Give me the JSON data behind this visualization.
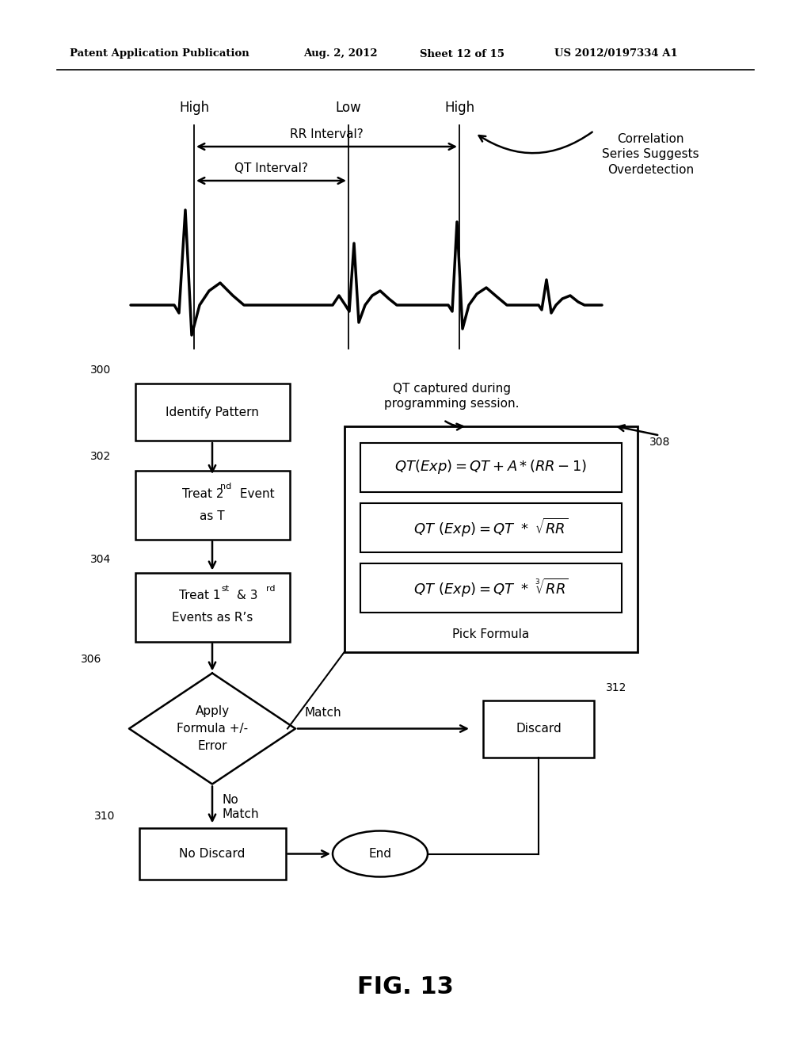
{
  "bg_color": "#ffffff",
  "header_text": "Patent Application Publication",
  "header_date": "Aug. 2, 2012",
  "header_sheet": "Sheet 12 of 15",
  "header_patent": "US 2012/0197334 A1",
  "fig_label": "FIG. 13",
  "ecg_label_high1": "High",
  "ecg_label_low": "Low",
  "ecg_label_high2": "High",
  "rr_label": "RR Interval?",
  "qt_label": "QT Interval?",
  "corr_label": "Correlation\nSeries Suggests\nOverdetection",
  "box300_label": "Identify Pattern",
  "diamond306_label": "Apply\nFormula +/-\nError",
  "box310_label": "No Discard",
  "box312_label": "Discard",
  "end_label": "End",
  "qt_formula_label": "QT captured during\nprogramming session.",
  "pick_formula_label": "Pick Formula",
  "ref300": "300",
  "ref302": "302",
  "ref304": "304",
  "ref306": "306",
  "ref308": "308",
  "ref310": "310",
  "ref312": "312",
  "match_label": "Match",
  "no_match_label": "No\nMatch"
}
